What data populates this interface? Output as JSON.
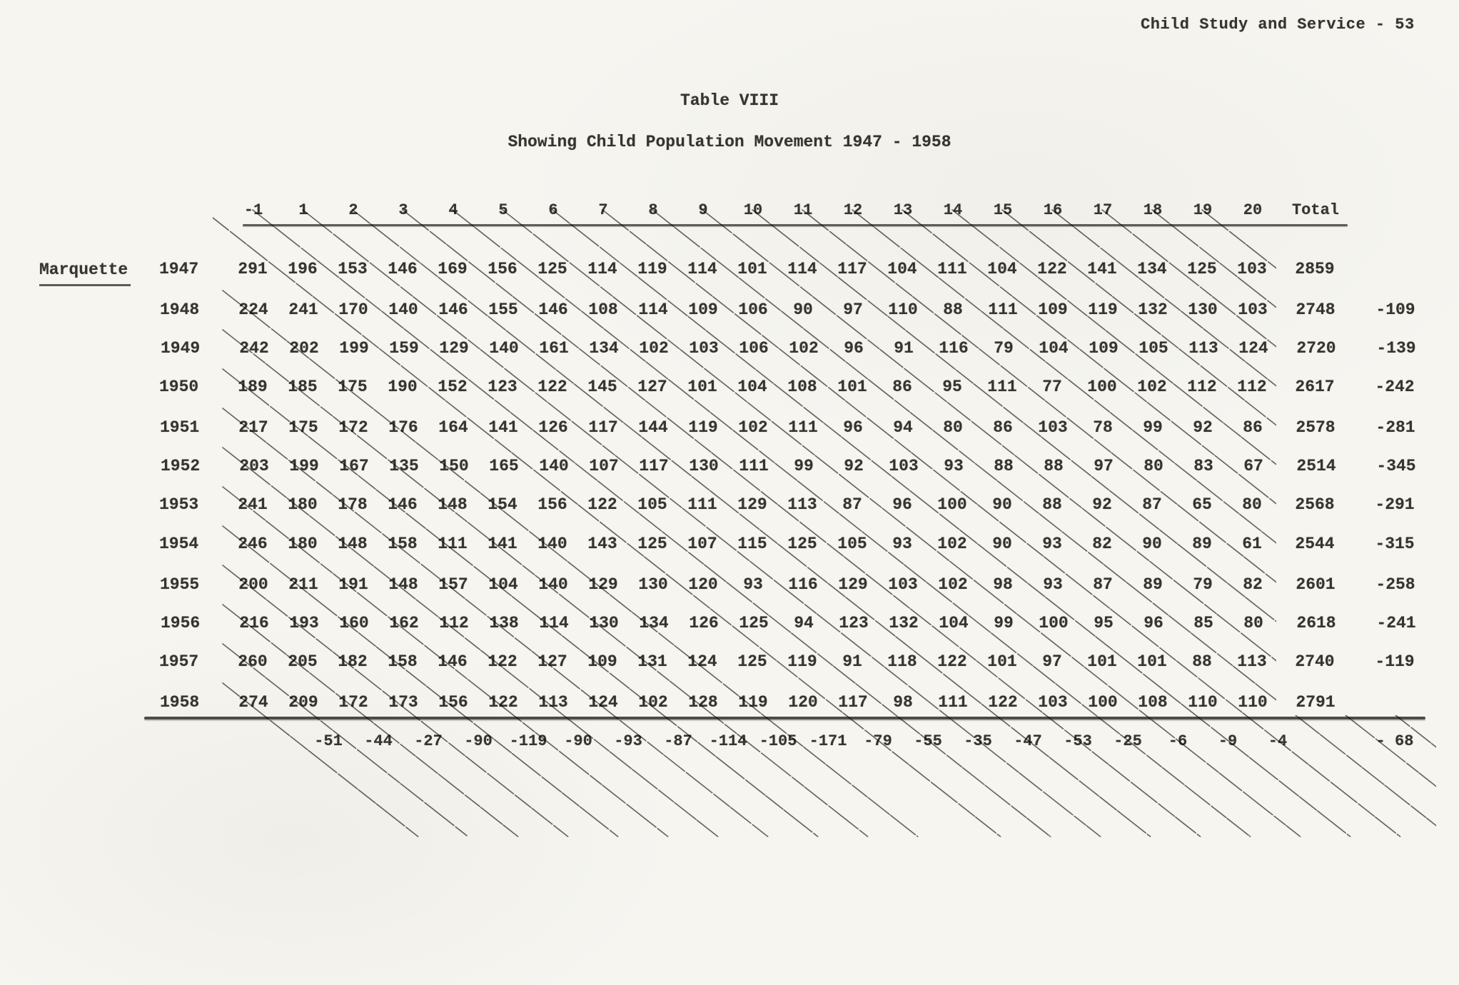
{
  "page": {
    "header_right": "Child Study and Service - 53",
    "title": "Table VIII",
    "subtitle": "Showing Child Population Movement 1947 - 1958",
    "group_label": "Marquette"
  },
  "table": {
    "age_columns": [
      "-1",
      "1",
      "2",
      "3",
      "4",
      "5",
      "6",
      "7",
      "8",
      "9",
      "10",
      "11",
      "12",
      "13",
      "14",
      "15",
      "16",
      "17",
      "18",
      "19",
      "20"
    ],
    "total_header": "Total",
    "rows": [
      {
        "year": "1947",
        "values": [
          291,
          196,
          153,
          146,
          169,
          156,
          125,
          114,
          119,
          114,
          101,
          114,
          117,
          104,
          111,
          104,
          122,
          141,
          134,
          125,
          103
        ],
        "total": "2859",
        "change": ""
      },
      {
        "year": "1948",
        "values": [
          224,
          241,
          170,
          140,
          146,
          155,
          146,
          108,
          114,
          109,
          106,
          90,
          97,
          110,
          88,
          111,
          109,
          119,
          132,
          130,
          103
        ],
        "total": "2748",
        "change": "-109"
      },
      {
        "year": "1949",
        "values": [
          242,
          202,
          199,
          159,
          129,
          140,
          161,
          134,
          102,
          103,
          106,
          102,
          96,
          91,
          116,
          79,
          104,
          109,
          105,
          113,
          124
        ],
        "total": "2720",
        "change": "-139"
      },
      {
        "year": "1950",
        "values": [
          189,
          185,
          175,
          190,
          152,
          123,
          122,
          145,
          127,
          101,
          104,
          108,
          101,
          86,
          95,
          111,
          77,
          100,
          102,
          112,
          112
        ],
        "total": "2617",
        "change": "-242"
      },
      {
        "year": "1951",
        "values": [
          217,
          175,
          172,
          176,
          164,
          141,
          126,
          117,
          144,
          119,
          102,
          111,
          96,
          94,
          80,
          86,
          103,
          78,
          99,
          92,
          86
        ],
        "total": "2578",
        "change": "-281"
      },
      {
        "year": "1952",
        "values": [
          203,
          199,
          167,
          135,
          150,
          165,
          140,
          107,
          117,
          130,
          111,
          99,
          92,
          103,
          93,
          88,
          88,
          97,
          80,
          83,
          67
        ],
        "total": "2514",
        "change": "-345"
      },
      {
        "year": "1953",
        "values": [
          241,
          180,
          178,
          146,
          148,
          154,
          156,
          122,
          105,
          111,
          129,
          113,
          87,
          96,
          100,
          90,
          88,
          92,
          87,
          65,
          80
        ],
        "total": "2568",
        "change": "-291"
      },
      {
        "year": "1954",
        "values": [
          246,
          180,
          148,
          158,
          111,
          141,
          140,
          143,
          125,
          107,
          115,
          125,
          105,
          93,
          102,
          90,
          93,
          82,
          90,
          89,
          61
        ],
        "total": "2544",
        "change": "-315"
      },
      {
        "year": "1955",
        "values": [
          200,
          211,
          191,
          148,
          157,
          104,
          140,
          129,
          130,
          120,
          93,
          116,
          129,
          103,
          102,
          98,
          93,
          87,
          89,
          79,
          82
        ],
        "total": "2601",
        "change": "-258"
      },
      {
        "year": "1956",
        "values": [
          216,
          193,
          160,
          162,
          112,
          138,
          114,
          130,
          134,
          126,
          125,
          94,
          123,
          132,
          104,
          99,
          100,
          95,
          96,
          85,
          80
        ],
        "total": "2618",
        "change": "-241"
      },
      {
        "year": "1957",
        "values": [
          260,
          205,
          182,
          158,
          146,
          122,
          127,
          109,
          131,
          124,
          125,
          119,
          91,
          118,
          122,
          101,
          97,
          101,
          101,
          88,
          113
        ],
        "total": "2740",
        "change": "-119"
      },
      {
        "year": "1958",
        "values": [
          274,
          209,
          172,
          173,
          156,
          122,
          113,
          124,
          102,
          128,
          119,
          120,
          117,
          98,
          111,
          122,
          103,
          100,
          108,
          110,
          110
        ],
        "total": "2791",
        "change": ""
      }
    ],
    "summary_row": {
      "values": [
        "-51",
        "-44",
        "-27",
        "-90",
        "-119",
        "-90",
        "-93",
        "-87",
        "-114",
        "-105",
        "-171",
        "-79",
        "-55",
        "-35",
        "-47",
        "-53",
        "-25",
        "-6",
        "-9",
        "-4"
      ],
      "overall_change": "- 68"
    }
  }
}
